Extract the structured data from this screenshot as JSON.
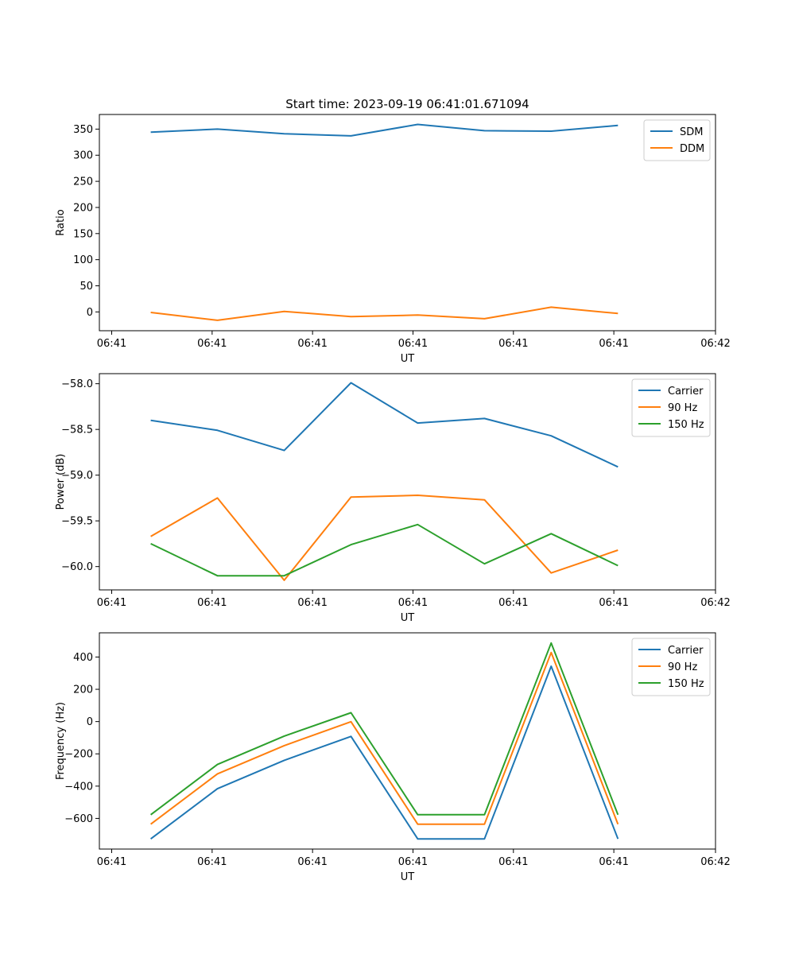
{
  "figure_title": "Start time: 2023-09-19 06:41:01.671094",
  "chart_data": [
    {
      "type": "line",
      "ylabel": "Ratio",
      "xlabel": "UT",
      "x_tick_labels": [
        "06:41",
        "06:41",
        "06:41",
        "06:41",
        "06:41",
        "06:41",
        "06:42"
      ],
      "y_ticks": [
        0,
        50,
        100,
        150,
        200,
        250,
        300,
        350
      ],
      "y_tick_labels": [
        "0",
        "50",
        "100",
        "150",
        "200",
        "250",
        "300",
        "350"
      ],
      "xlim": [
        0,
        6
      ],
      "ylim": [
        -36,
        378
      ],
      "legend_position": "top-right",
      "x": [
        0.5,
        1.15,
        1.8,
        2.45,
        3.1,
        3.75,
        4.4,
        5.05
      ],
      "series": [
        {
          "name": "SDM",
          "color": "#1f77b4",
          "values": [
            344,
            350,
            341,
            337,
            359,
            347,
            346,
            357
          ]
        },
        {
          "name": "DDM",
          "color": "#ff7f0e",
          "values": [
            -1,
            -16,
            1,
            -9,
            -6,
            -13,
            9,
            -3
          ]
        }
      ]
    },
    {
      "type": "line",
      "ylabel": "Power (dB)",
      "xlabel": "UT",
      "x_tick_labels": [
        "06:41",
        "06:41",
        "06:41",
        "06:41",
        "06:41",
        "06:41",
        "06:42"
      ],
      "y_ticks": [
        -60.0,
        -59.5,
        -59.0,
        -58.5,
        -58.0
      ],
      "y_tick_labels": [
        "−60.0",
        "−59.5",
        "−59.0",
        "−58.5",
        "−58.0"
      ],
      "xlim": [
        0,
        6
      ],
      "ylim": [
        -60.255,
        -57.89
      ],
      "legend_position": "top-right",
      "x": [
        0.5,
        1.15,
        1.8,
        2.45,
        3.1,
        3.75,
        4.4,
        5.05
      ],
      "series": [
        {
          "name": "Carrier",
          "color": "#1f77b4",
          "values": [
            -58.4,
            -58.51,
            -58.73,
            -57.99,
            -58.43,
            -58.38,
            -58.57,
            -58.91
          ]
        },
        {
          "name": "90 Hz",
          "color": "#ff7f0e",
          "values": [
            -59.67,
            -59.25,
            -60.15,
            -59.24,
            -59.22,
            -59.27,
            -60.07,
            -59.82
          ]
        },
        {
          "name": "150 Hz",
          "color": "#2ca02c",
          "values": [
            -59.75,
            -60.1,
            -60.1,
            -59.76,
            -59.54,
            -59.97,
            -59.64,
            -59.99
          ]
        }
      ]
    },
    {
      "type": "line",
      "ylabel": "Frequency (Hz)",
      "xlabel": "UT",
      "x_tick_labels": [
        "06:41",
        "06:41",
        "06:41",
        "06:41",
        "06:41",
        "06:41",
        "06:42"
      ],
      "y_ticks": [
        -600,
        -400,
        -200,
        0,
        200,
        400
      ],
      "y_tick_labels": [
        "−600",
        "−400",
        "−200",
        "0",
        "200",
        "400"
      ],
      "xlim": [
        0,
        6
      ],
      "ylim": [
        -790,
        550
      ],
      "legend_position": "top-right",
      "x": [
        0.5,
        1.15,
        1.8,
        2.45,
        3.1,
        3.75,
        4.4,
        5.05
      ],
      "series": [
        {
          "name": "Carrier",
          "color": "#1f77b4",
          "values": [
            -727,
            -416,
            -240,
            -92,
            -727,
            -727,
            343,
            -727
          ]
        },
        {
          "name": "90 Hz",
          "color": "#ff7f0e",
          "values": [
            -636,
            -324,
            -149,
            -1,
            -636,
            -636,
            428,
            -636
          ]
        },
        {
          "name": "150 Hz",
          "color": "#2ca02c",
          "values": [
            -577,
            -266,
            -90,
            55,
            -577,
            -577,
            487,
            -577
          ]
        }
      ]
    }
  ]
}
